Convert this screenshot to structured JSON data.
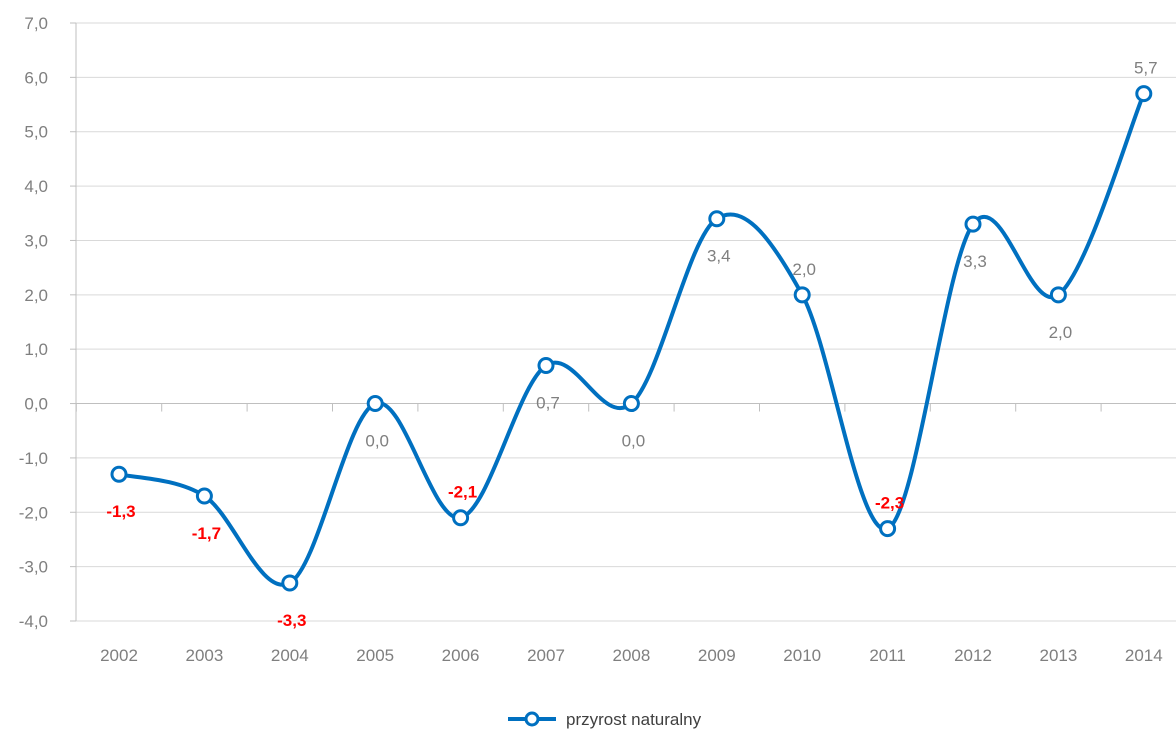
{
  "chart_data": {
    "type": "line",
    "categories": [
      "2002",
      "2003",
      "2004",
      "2005",
      "2006",
      "2007",
      "2008",
      "2009",
      "2010",
      "2011",
      "2012",
      "2013",
      "2014"
    ],
    "series": [
      {
        "name": "przyrost naturalny",
        "values": [
          -1.3,
          -1.7,
          -3.3,
          0.0,
          -2.1,
          0.7,
          0.0,
          3.4,
          2.0,
          -2.3,
          3.3,
          2.0,
          5.7
        ],
        "labels": [
          "-1,3",
          "-1,7",
          "-3,3",
          "0,0",
          "-2,1",
          "0,7",
          "0,0",
          "3,4",
          "2,0",
          "-2,3",
          "3,3",
          "2,0",
          "5,7"
        ]
      }
    ],
    "ylim": [
      -4.0,
      7.0
    ],
    "yticks": [
      "-4,0",
      "-3,0",
      "-2,0",
      "-1,0",
      "0,0",
      "1,0",
      "2,0",
      "3,0",
      "4,0",
      "5,0",
      "6,0",
      "7,0"
    ],
    "grid": true,
    "smooth": true,
    "legend": "bottom-center",
    "colors": {
      "line": "#0070c0",
      "marker_fill": "#ffffff",
      "negative_label": "#ff0000",
      "positive_label": "#7f7f7f",
      "grid": "#d9d9d9",
      "axis": "#bfbfbf"
    },
    "title": "",
    "xlabel": "",
    "ylabel": ""
  }
}
